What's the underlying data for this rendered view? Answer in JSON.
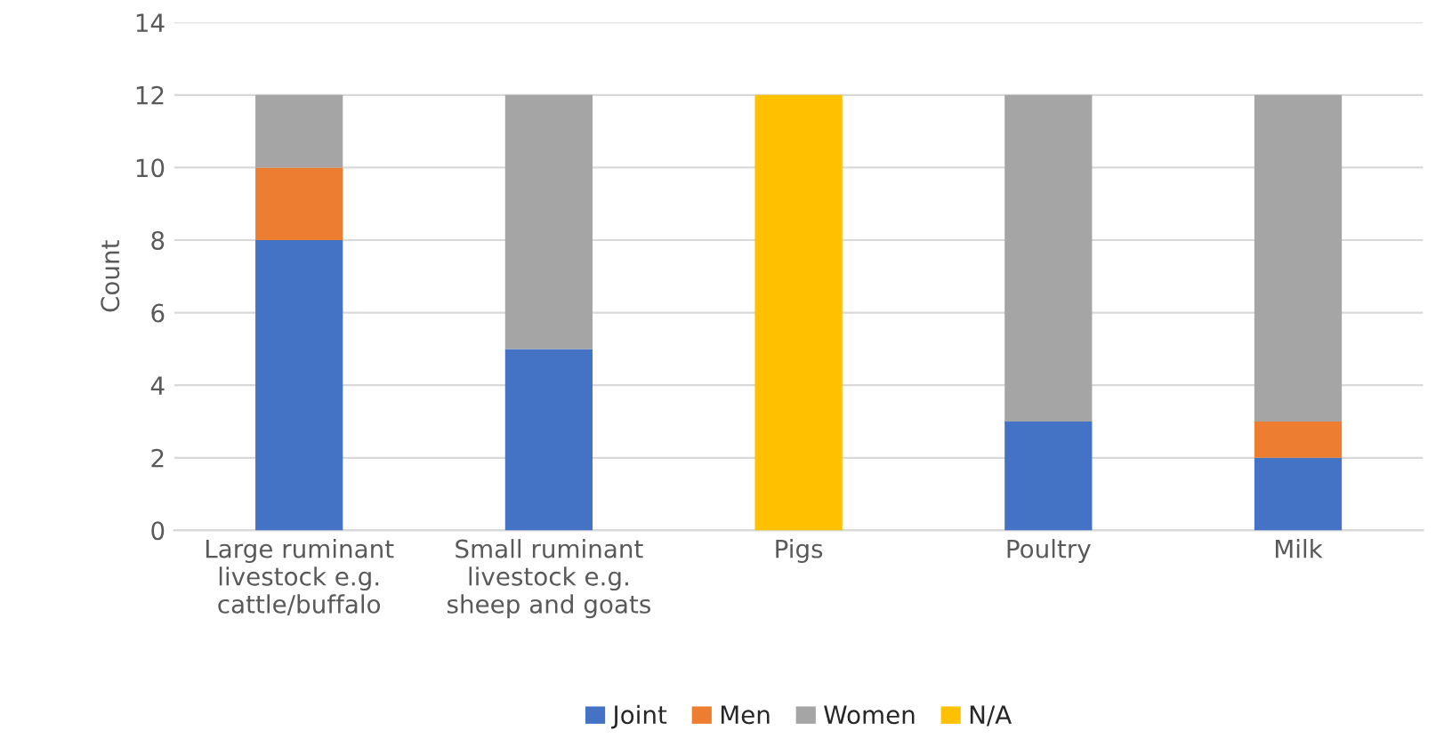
{
  "chart_data": {
    "type": "bar",
    "stacked": true,
    "ylabel": "Count",
    "categories": [
      "Large ruminant\nlivestock e.g.\ncattle/buffalo",
      "Small ruminant\nlivestock e.g.\nsheep and goats",
      "Pigs",
      "Poultry",
      "Milk"
    ],
    "series": [
      {
        "name": "Joint",
        "color": "#4472c4",
        "values": [
          8,
          5,
          0,
          3,
          2
        ]
      },
      {
        "name": "Men",
        "color": "#ed7d31",
        "values": [
          2,
          0,
          0,
          0,
          1
        ]
      },
      {
        "name": "Women",
        "color": "#a5a5a5",
        "values": [
          2,
          7,
          0,
          9,
          9
        ]
      },
      {
        "name": "N/A",
        "color": "#ffc000",
        "values": [
          0,
          0,
          12,
          0,
          0
        ]
      }
    ],
    "ylim": [
      0,
      14
    ],
    "yticks": [
      0,
      2,
      4,
      6,
      8,
      10,
      12,
      14
    ],
    "grid": "y",
    "legend": "bottom"
  }
}
